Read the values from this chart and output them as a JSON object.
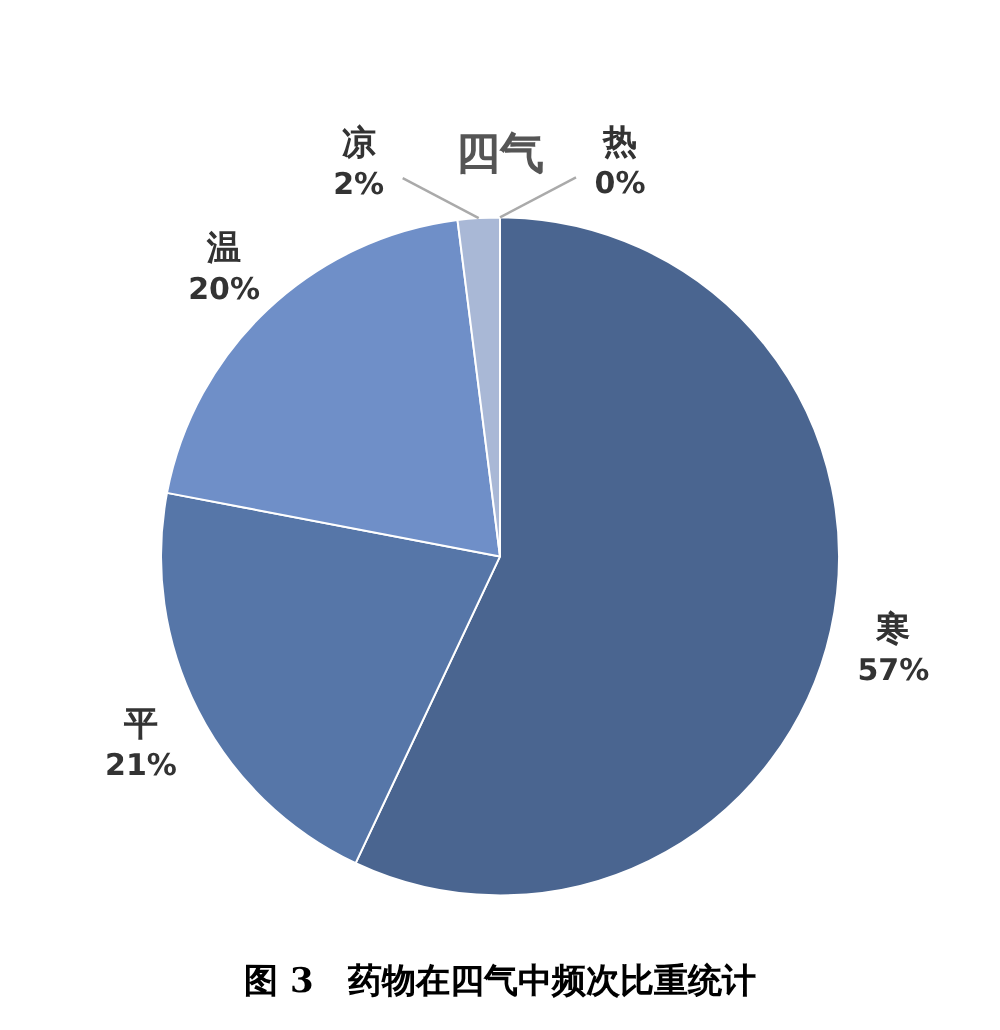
{
  "chart_data": {
    "type": "pie",
    "title": "四气",
    "categories": [
      "寒",
      "平",
      "温",
      "凉",
      "热"
    ],
    "values": [
      57,
      21,
      20,
      2,
      0
    ],
    "colors": [
      "#4a6590",
      "#5676a8",
      "#6f8fc8",
      "#a9b8d6",
      "#c8d2e6"
    ],
    "value_labels": [
      "57%",
      "21%",
      "20%",
      "2%",
      "0%"
    ],
    "annotations": [
      "图 3　药物在四气中频次比重统计"
    ]
  }
}
